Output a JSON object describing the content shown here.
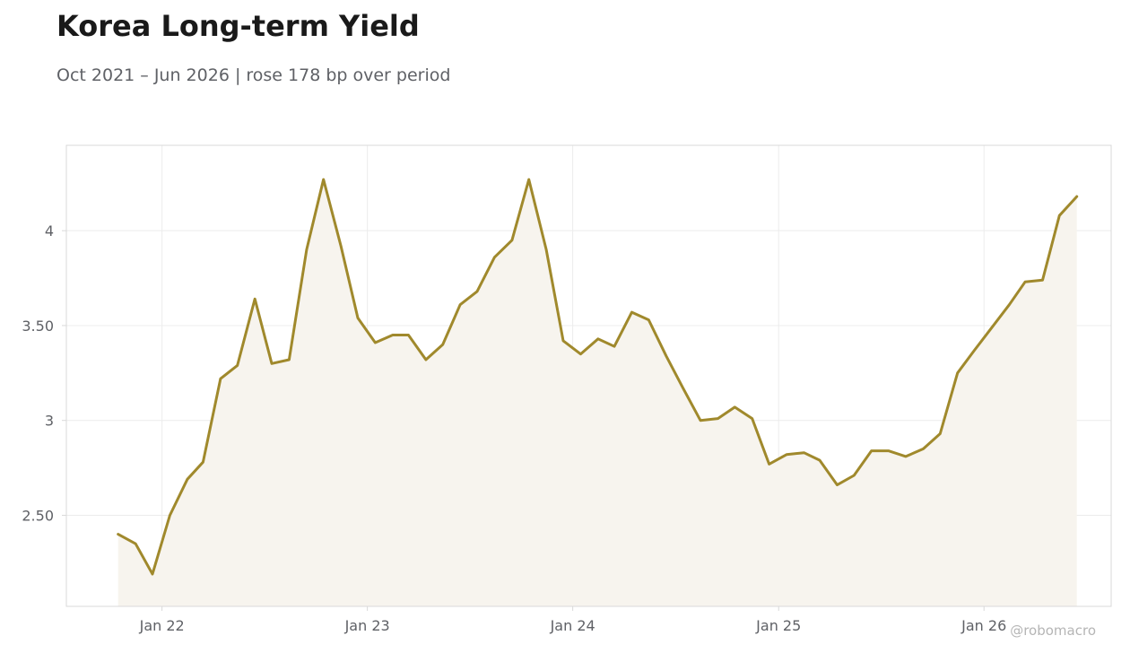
{
  "header": {
    "title": "Korea Long-term Yield",
    "subtitle": "Oct 2021 – Jun 2026 | rose 178 bp over period"
  },
  "watermark": "@robomacro",
  "colors": {
    "line": "#a0892c",
    "fill": "#f7f4ee",
    "grid": "#ececec",
    "frame": "#d9d9d9",
    "text": "#5f6166"
  },
  "chart_data": {
    "type": "area",
    "grid": true,
    "ylim": [
      2.02,
      4.45
    ],
    "xlim": [
      "2021-07-15",
      "2026-08-15"
    ],
    "yticks": [
      {
        "value": 2.5,
        "label": "2.50"
      },
      {
        "value": 3,
        "label": "3"
      },
      {
        "value": 3.5,
        "label": "3.50"
      },
      {
        "value": 4,
        "label": "4"
      }
    ],
    "xticks": [
      {
        "date": "2022-01-01",
        "label": "Jan 22"
      },
      {
        "date": "2023-01-01",
        "label": "Jan 23"
      },
      {
        "date": "2024-01-01",
        "label": "Jan 24"
      },
      {
        "date": "2025-01-01",
        "label": "Jan 25"
      },
      {
        "date": "2026-01-01",
        "label": "Jan 26"
      }
    ],
    "series": [
      {
        "x": [
          "2021-10",
          "2021-11",
          "2021-12",
          "2022-01",
          "2022-02",
          "2022-03",
          "2022-04",
          "2022-05",
          "2022-06",
          "2022-07",
          "2022-08",
          "2022-09",
          "2022-10",
          "2022-11",
          "2022-12",
          "2023-01",
          "2023-02",
          "2023-03",
          "2023-04",
          "2023-05",
          "2023-06",
          "2023-07",
          "2023-08",
          "2023-09",
          "2023-10",
          "2023-11",
          "2023-12",
          "2024-01",
          "2024-02",
          "2024-03",
          "2024-04",
          "2024-05",
          "2024-06",
          "2024-07",
          "2024-08",
          "2024-09",
          "2024-10",
          "2024-11",
          "2024-12",
          "2025-01",
          "2025-02",
          "2025-03",
          "2025-04",
          "2025-05",
          "2025-06",
          "2025-07",
          "2025-08",
          "2025-09",
          "2025-10",
          "2025-11",
          "2025-12",
          "2026-01",
          "2026-02",
          "2026-03",
          "2026-04",
          "2026-05",
          "2026-06"
        ],
        "values": [
          2.4,
          2.35,
          2.19,
          2.5,
          2.69,
          2.78,
          3.22,
          3.29,
          3.64,
          3.3,
          3.32,
          3.9,
          4.27,
          3.92,
          3.54,
          3.41,
          3.45,
          3.45,
          3.32,
          3.4,
          3.61,
          3.68,
          3.86,
          3.95,
          4.27,
          3.9,
          3.42,
          3.35,
          3.43,
          3.39,
          3.57,
          3.53,
          3.34,
          3.17,
          3.0,
          3.01,
          3.07,
          3.01,
          2.77,
          2.82,
          2.83,
          2.79,
          2.66,
          2.71,
          2.84,
          2.84,
          2.81,
          2.85,
          2.93,
          3.25,
          3.37,
          3.49,
          3.61,
          3.73,
          3.74,
          4.08,
          4.18
        ]
      }
    ]
  }
}
